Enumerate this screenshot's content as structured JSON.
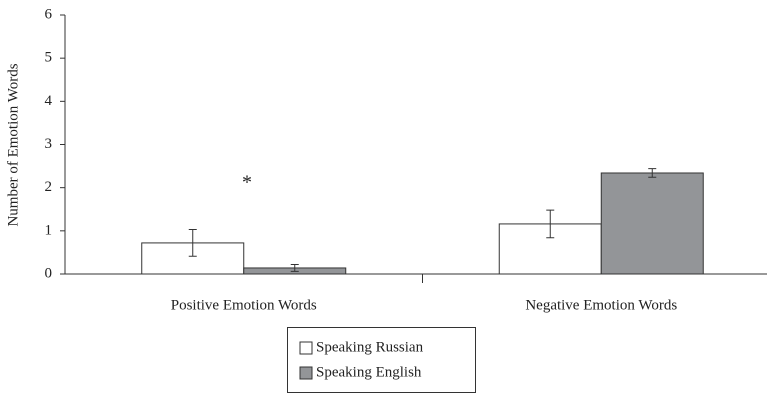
{
  "chart_data": {
    "type": "bar",
    "ylabel": "Number of Emotion Words",
    "categories": [
      "Positive Emotion Words",
      "Negative Emotion Words"
    ],
    "series": [
      {
        "name": "Speaking Russian",
        "color": "#ffffff",
        "values": [
          0.72,
          1.16
        ],
        "errors": [
          0.31,
          0.32
        ]
      },
      {
        "name": "Speaking English",
        "color": "#939598",
        "values": [
          0.14,
          2.34
        ],
        "errors": [
          0.08,
          0.1
        ]
      }
    ],
    "annotation": "*",
    "ylim": [
      0,
      6
    ],
    "yticks": [
      0,
      1,
      2,
      3,
      4,
      5,
      6
    ],
    "grid": false,
    "legend": "bottom"
  }
}
